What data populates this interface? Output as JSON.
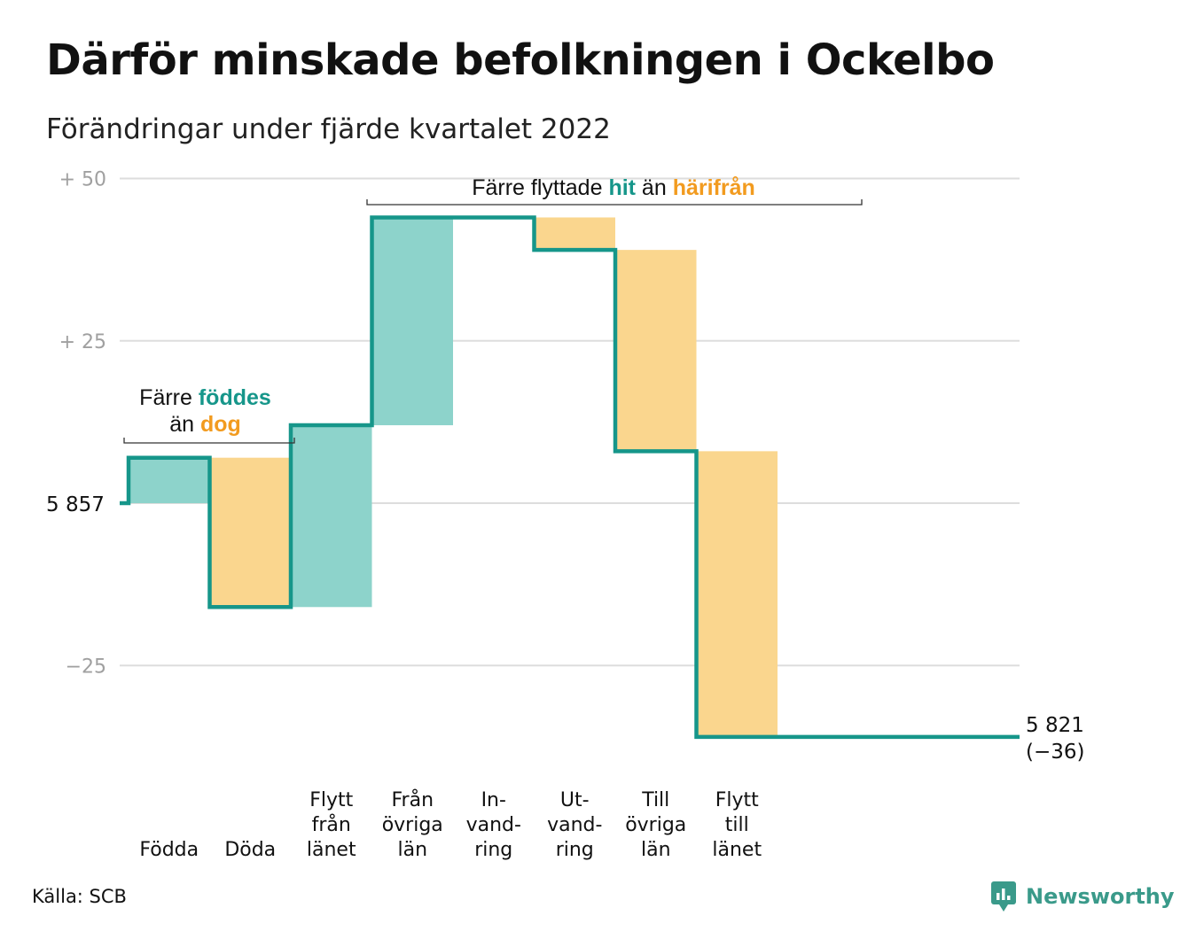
{
  "title": "Därför minskade befolkningen i Ockelbo",
  "subtitle": "Förändringar under fjärde kvartalet 2022",
  "source": "Källa: SCB",
  "brand": "Newsworthy",
  "colors": {
    "increase": "#8dd3cb",
    "decrease": "#fad68e",
    "line": "#16968a",
    "teal_text": "#16968a",
    "orange_text": "#f29b1f",
    "grid": "#dddddd",
    "axis_text": "#a0a0a0"
  },
  "chart_data": {
    "type": "waterfall",
    "baseline": 0,
    "baseline_label": "5 857",
    "end_label_line1": "5 821",
    "end_label_line2": "(−36)",
    "yticks": [
      {
        "value": 50,
        "label": "+ 50"
      },
      {
        "value": 25,
        "label": "+ 25"
      },
      {
        "value": -25,
        "label": "−25"
      }
    ],
    "ylim": [
      -39,
      52
    ],
    "steps": [
      {
        "label_lines": [
          "Födda"
        ],
        "change": 7
      },
      {
        "label_lines": [
          "Döda"
        ],
        "change": -23
      },
      {
        "label_lines": [
          "Flytt",
          "från",
          "länet"
        ],
        "change": 28
      },
      {
        "label_lines": [
          "Från",
          "övriga",
          "län"
        ],
        "change": 32
      },
      {
        "label_lines": [
          "In-",
          "vand-",
          "ring"
        ],
        "change": 0
      },
      {
        "label_lines": [
          "Ut-",
          "vand-",
          "ring"
        ],
        "change": -5
      },
      {
        "label_lines": [
          "Till",
          "övriga",
          "län"
        ],
        "change": -31
      },
      {
        "label_lines": [
          "Flytt",
          "till",
          "länet"
        ],
        "change": -44
      }
    ],
    "annotations": [
      {
        "line1": {
          "before": "Färre ",
          "hl1": "föddes",
          "mid": "",
          "hl2": "",
          "after": ""
        },
        "line2": {
          "before": "än ",
          "hl1": "",
          "mid": "",
          "hl2": "dog",
          "after": ""
        }
      },
      {
        "line1": {
          "before": "Färre flyttade ",
          "hl1": "hit",
          "mid": " än ",
          "hl2": "härifrån",
          "after": ""
        }
      }
    ]
  }
}
